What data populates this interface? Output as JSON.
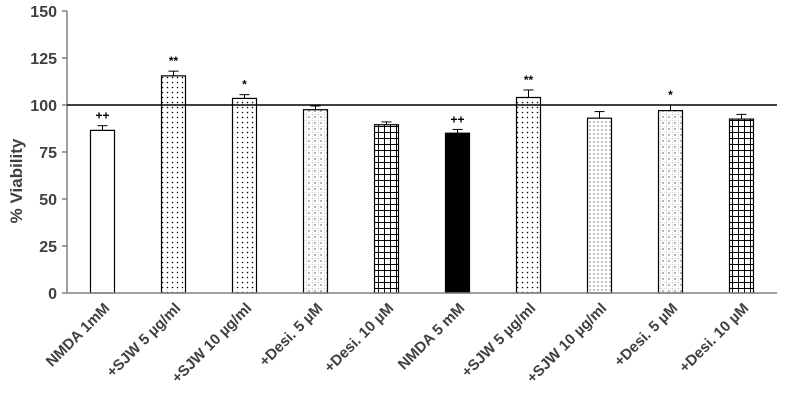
{
  "chart_data": {
    "type": "bar",
    "ylabel": "% Viability",
    "ylim": [
      0,
      150
    ],
    "yticks": [
      0,
      25,
      50,
      75,
      100,
      125,
      150
    ],
    "reference_line": 100,
    "grid": false,
    "categories": [
      "NMDA 1mM",
      "+SJW 5 µg/ml",
      "+SJW 10 µg/ml",
      "+Desi. 5 µM",
      "+Desi. 10 µM",
      "NMDA 5 mM",
      "+SJW 5 µg/ml",
      "+SJW 10 µg/ml",
      "+Desi. 5 µM",
      "+Desi. 10 µM"
    ],
    "values": [
      86.5,
      115.5,
      103.5,
      97.5,
      89.5,
      85,
      104,
      93,
      97,
      92.5
    ],
    "errors": [
      2.5,
      2.5,
      2,
      2,
      1.5,
      2,
      4,
      3.5,
      3,
      2.5
    ],
    "annotations": [
      "++",
      "**",
      "*",
      "",
      "",
      "++",
      "**",
      "",
      "*",
      ""
    ],
    "patterns": [
      "white",
      "dots",
      "dots",
      "dots-grid",
      "grid",
      "black",
      "dots",
      "dots-fine",
      "dots-grid",
      "grid"
    ],
    "colors": {
      "bar_stroke": "#000000",
      "axis": "#808080",
      "text": "#404040"
    }
  }
}
